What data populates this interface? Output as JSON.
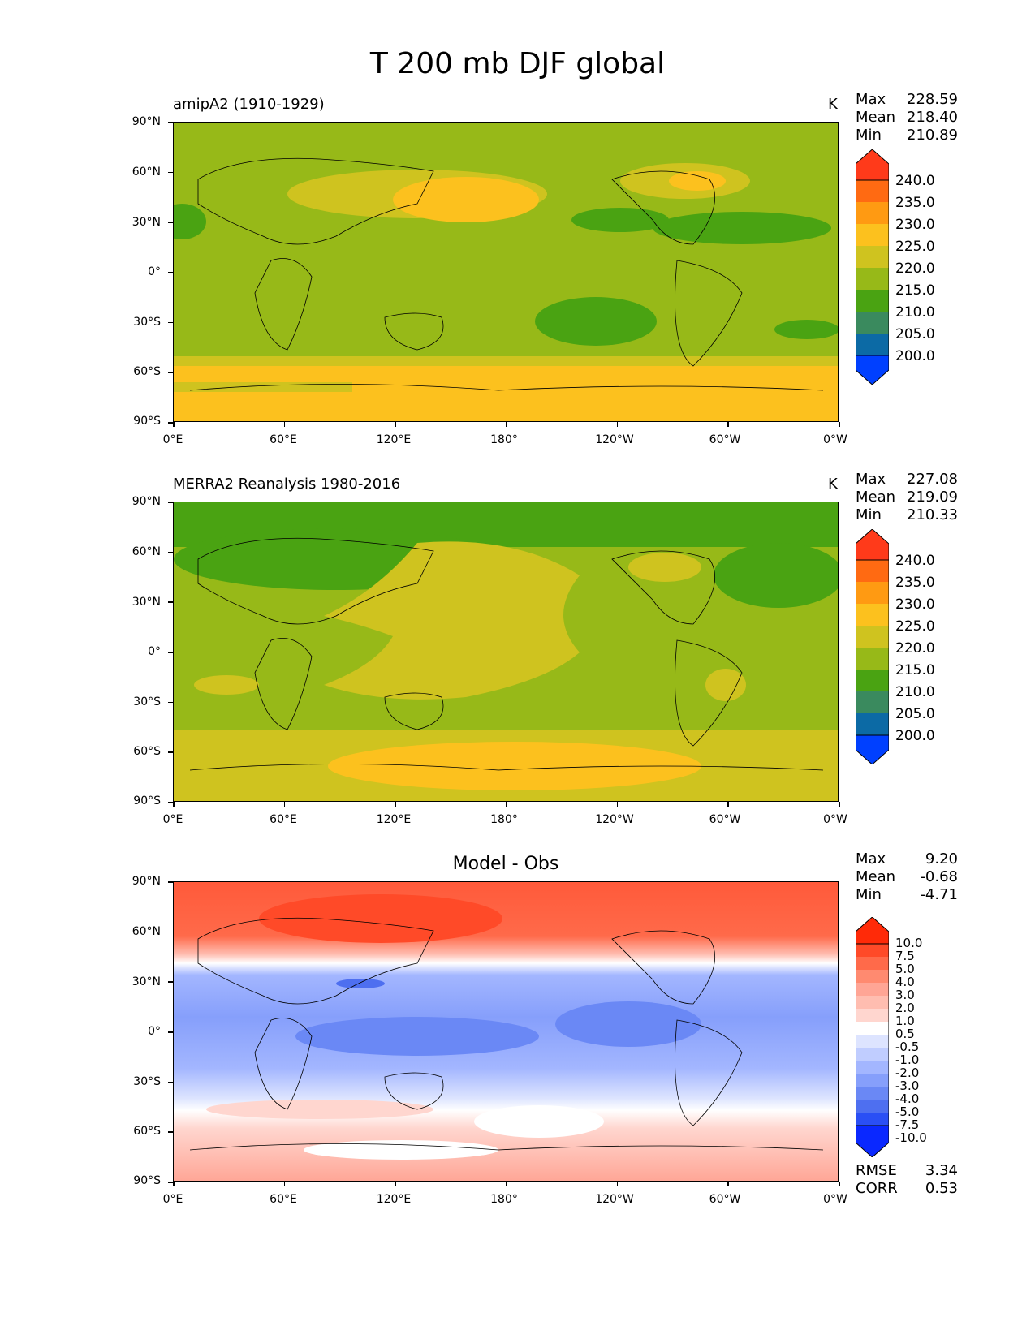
{
  "figure_title": "T 200 mb DJF global",
  "panels": [
    {
      "title": "amipA2 (1910-1929)",
      "unit": "K",
      "stats": [
        [
          "Max",
          "228.59"
        ],
        [
          "Mean",
          "218.40"
        ],
        [
          "Min",
          "210.89"
        ]
      ],
      "colorbar": "abs"
    },
    {
      "title": "MERRA2 Reanalysis 1980-2016",
      "unit": "K",
      "stats": [
        [
          "Max",
          "227.08"
        ],
        [
          "Mean",
          "219.09"
        ],
        [
          "Min",
          "210.33"
        ]
      ],
      "colorbar": "abs"
    },
    {
      "title": "Model - Obs",
      "unit": "",
      "stats": [
        [
          "Max",
          "9.20"
        ],
        [
          "Mean",
          "-0.68"
        ],
        [
          "Min",
          "-4.71"
        ]
      ],
      "colorbar": "diff",
      "footer": [
        [
          "RMSE",
          "3.34"
        ],
        [
          "CORR",
          "0.53"
        ]
      ]
    }
  ],
  "chart_data": [
    {
      "type": "heatmap",
      "title": "amipA2 (1910-1929)",
      "units": "K",
      "x_ticks": [
        "0°E",
        "60°E",
        "120°E",
        "180°",
        "120°W",
        "60°W",
        "0°W"
      ],
      "y_ticks": [
        "90°N",
        "60°N",
        "30°N",
        "0°",
        "30°S",
        "60°S",
        "90°S"
      ],
      "xlim": [
        0,
        360
      ],
      "ylim": [
        -90,
        90
      ],
      "colorbar_levels": [
        "240.0",
        "235.0",
        "230.0",
        "225.0",
        "220.0",
        "215.0",
        "210.0",
        "205.0",
        "200.0"
      ],
      "colorbar_colors": [
        "#ff3a1a",
        "#ff6a12",
        "#ff9a12",
        "#fcc11e",
        "#cfc31f",
        "#97b918",
        "#4aa312",
        "#3a8a5e",
        "#0c6aa5",
        "#0040ff"
      ],
      "stats": {
        "max": 228.59,
        "mean": 218.4,
        "min": 210.89
      }
    },
    {
      "type": "heatmap",
      "title": "MERRA2 Reanalysis 1980-2016",
      "units": "K",
      "x_ticks": [
        "0°E",
        "60°E",
        "120°E",
        "180°",
        "120°W",
        "60°W",
        "0°W"
      ],
      "y_ticks": [
        "90°N",
        "60°N",
        "30°N",
        "0°",
        "30°S",
        "60°S",
        "90°S"
      ],
      "xlim": [
        0,
        360
      ],
      "ylim": [
        -90,
        90
      ],
      "colorbar_levels": [
        "240.0",
        "235.0",
        "230.0",
        "225.0",
        "220.0",
        "215.0",
        "210.0",
        "205.0",
        "200.0"
      ],
      "stats": {
        "max": 227.08,
        "mean": 219.09,
        "min": 210.33
      }
    },
    {
      "type": "heatmap",
      "title": "Model - Obs",
      "x_ticks": [
        "0°E",
        "60°E",
        "120°E",
        "180°",
        "120°W",
        "60°W",
        "0°W"
      ],
      "y_ticks": [
        "90°N",
        "60°N",
        "30°N",
        "0°",
        "30°S",
        "60°S",
        "90°S"
      ],
      "xlim": [
        0,
        360
      ],
      "ylim": [
        -90,
        90
      ],
      "colorbar_levels": [
        "10.0",
        "7.5",
        "5.0",
        "4.0",
        "3.0",
        "2.0",
        "1.0",
        "0.5",
        "-0.5",
        "-1.0",
        "-2.0",
        "-3.0",
        "-4.0",
        "-5.0",
        "-7.5",
        "-10.0"
      ],
      "stats": {
        "max": 9.2,
        "mean": -0.68,
        "min": -4.71,
        "rmse": 3.34,
        "corr": 0.53
      }
    }
  ],
  "colors": {
    "abs": [
      "#ff3a1a",
      "#ff6a12",
      "#ff9a12",
      "#fcc11e",
      "#cfc31f",
      "#97b918",
      "#4aa312",
      "#3a8a5e",
      "#0c6aa5",
      "#0040ff"
    ],
    "diff": [
      "#ff2a08",
      "#ff4a28",
      "#ff6a4a",
      "#ff8a70",
      "#ffa595",
      "#ffbdb0",
      "#ffd6cf",
      "#ffffff",
      "#dde4ff",
      "#c0cdff",
      "#a3b6ff",
      "#869ffb",
      "#6a88f5",
      "#4e6ff0",
      "#2a4ff5",
      "#0a28ff"
    ]
  }
}
